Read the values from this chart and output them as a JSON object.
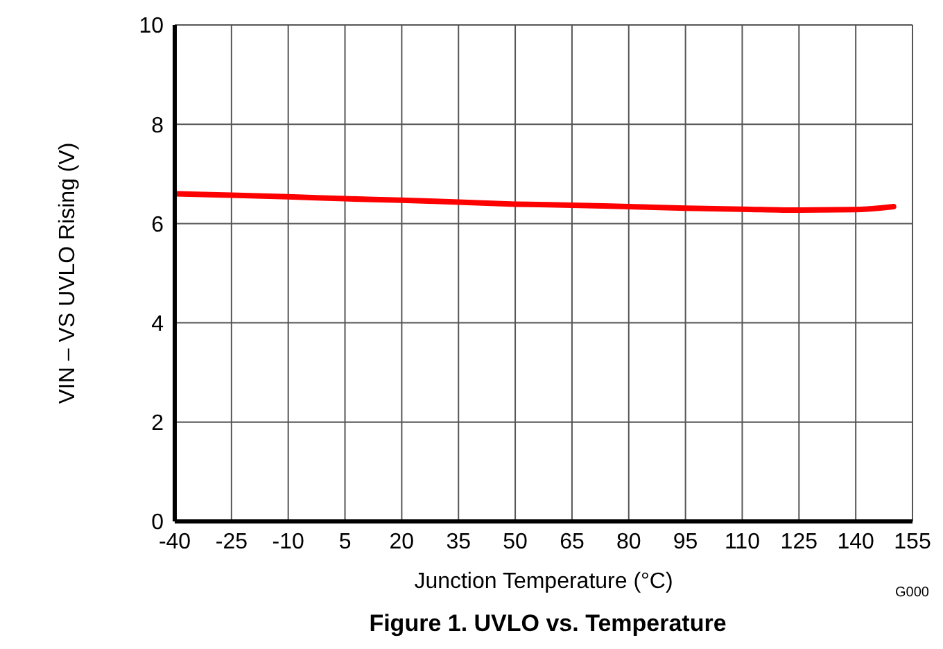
{
  "chart_data": {
    "type": "line",
    "title": "Figure 1. UVLO vs. Temperature",
    "xlabel": "Junction Temperature (°C)",
    "ylabel": "VIN – VS UVLO Rising (V)",
    "annotations": [
      "G000"
    ],
    "x": [
      -40,
      -25,
      -10,
      5,
      20,
      35,
      50,
      65,
      80,
      95,
      110,
      125,
      140,
      150
    ],
    "series": [
      {
        "color": "#ff0000",
        "values": [
          6.6,
          6.57,
          6.54,
          6.5,
          6.47,
          6.43,
          6.39,
          6.37,
          6.34,
          6.31,
          6.29,
          6.27,
          6.28,
          6.34
        ]
      }
    ],
    "xlim": [
      -40,
      155
    ],
    "xticks": [
      -40,
      -25,
      -10,
      5,
      20,
      35,
      50,
      65,
      80,
      95,
      110,
      125,
      140,
      155
    ],
    "ylim": [
      0,
      10
    ],
    "yticks": [
      0,
      2,
      4,
      6,
      8,
      10
    ],
    "grid": true,
    "marker": "none",
    "line_style": "solid"
  }
}
